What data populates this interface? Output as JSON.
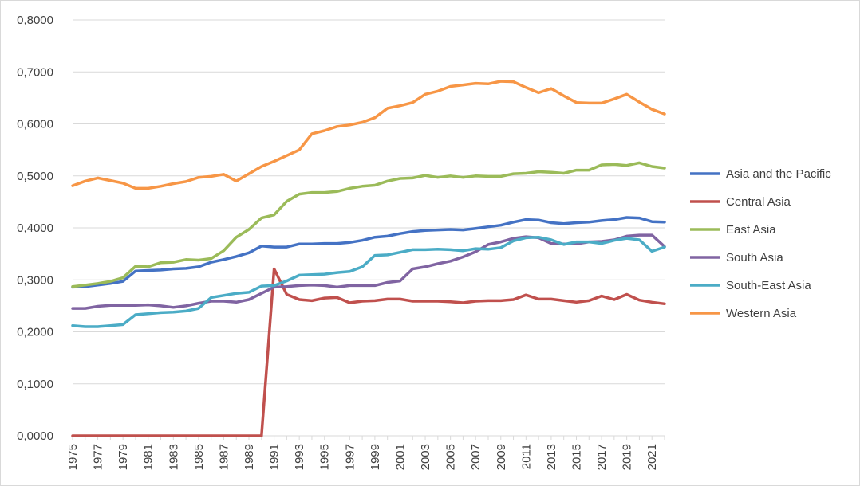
{
  "chart_data": {
    "type": "line",
    "title": "",
    "xlabel": "",
    "ylabel": "",
    "ylim": [
      0,
      0.8
    ],
    "y_ticks": [
      0,
      0.1,
      0.2,
      0.3,
      0.4,
      0.5,
      0.6,
      0.7,
      0.8
    ],
    "y_tick_labels": [
      "0,0000",
      "0,1000",
      "0,2000",
      "0,3000",
      "0,4000",
      "0,5000",
      "0,6000",
      "0,7000",
      "0,8000"
    ],
    "x": [
      1975,
      1976,
      1977,
      1978,
      1979,
      1980,
      1981,
      1982,
      1983,
      1984,
      1985,
      1986,
      1987,
      1988,
      1989,
      1990,
      1991,
      1992,
      1993,
      1994,
      1995,
      1996,
      1997,
      1998,
      1999,
      2000,
      2001,
      2002,
      2003,
      2004,
      2005,
      2006,
      2007,
      2008,
      2009,
      2010,
      2011,
      2012,
      2013,
      2014,
      2015,
      2016,
      2017,
      2018,
      2019,
      2020,
      2021,
      2022
    ],
    "x_tick_labels": [
      "1975",
      "1977",
      "1979",
      "1981",
      "1983",
      "1985",
      "1987",
      "1989",
      "1991",
      "1993",
      "1995",
      "1997",
      "1999",
      "2001",
      "2003",
      "2005",
      "2007",
      "2009",
      "2011",
      "2013",
      "2015",
      "2017",
      "2019",
      "2021"
    ],
    "grid": "horizontal",
    "legend_position": "right",
    "series": [
      {
        "name": "Asia and the Pacific",
        "color": "#4472c4",
        "values": [
          0.286,
          0.287,
          0.29,
          0.293,
          0.297,
          0.317,
          0.318,
          0.319,
          0.321,
          0.322,
          0.325,
          0.334,
          0.339,
          0.345,
          0.352,
          0.365,
          0.363,
          0.363,
          0.369,
          0.369,
          0.37,
          0.37,
          0.372,
          0.376,
          0.382,
          0.384,
          0.389,
          0.393,
          0.395,
          0.396,
          0.397,
          0.396,
          0.399,
          0.402,
          0.405,
          0.411,
          0.416,
          0.415,
          0.41,
          0.408,
          0.41,
          0.411,
          0.414,
          0.416,
          0.42,
          0.419,
          0.412,
          0.411
        ]
      },
      {
        "name": "Central Asia",
        "color": "#c0504d",
        "values": [
          0,
          0,
          0,
          0,
          0,
          0,
          0,
          0,
          0,
          0,
          0,
          0,
          0,
          0,
          0,
          0,
          0.321,
          0.272,
          0.262,
          0.26,
          0.265,
          0.266,
          0.256,
          0.259,
          0.26,
          0.263,
          0.263,
          0.259,
          0.259,
          0.259,
          0.258,
          0.256,
          0.259,
          0.26,
          0.26,
          0.262,
          0.271,
          0.263,
          0.263,
          0.26,
          0.257,
          0.26,
          0.269,
          0.262,
          0.272,
          0.261,
          0.257,
          0.254
        ]
      },
      {
        "name": "East Asia",
        "color": "#9bbb59",
        "values": [
          0.287,
          0.29,
          0.293,
          0.297,
          0.304,
          0.326,
          0.325,
          0.333,
          0.334,
          0.339,
          0.338,
          0.341,
          0.356,
          0.382,
          0.397,
          0.419,
          0.425,
          0.451,
          0.465,
          0.468,
          0.468,
          0.47,
          0.476,
          0.48,
          0.482,
          0.49,
          0.495,
          0.496,
          0.501,
          0.497,
          0.5,
          0.497,
          0.5,
          0.499,
          0.499,
          0.504,
          0.505,
          0.508,
          0.507,
          0.505,
          0.511,
          0.511,
          0.521,
          0.522,
          0.52,
          0.525,
          0.518,
          0.515
        ]
      },
      {
        "name": "South Asia",
        "color": "#8064a2",
        "values": [
          0.245,
          0.245,
          0.249,
          0.251,
          0.251,
          0.251,
          0.252,
          0.25,
          0.247,
          0.25,
          0.255,
          0.259,
          0.259,
          0.257,
          0.262,
          0.274,
          0.286,
          0.287,
          0.289,
          0.29,
          0.289,
          0.286,
          0.289,
          0.289,
          0.289,
          0.295,
          0.298,
          0.321,
          0.325,
          0.331,
          0.336,
          0.344,
          0.354,
          0.368,
          0.373,
          0.38,
          0.383,
          0.381,
          0.37,
          0.369,
          0.369,
          0.373,
          0.374,
          0.377,
          0.384,
          0.386,
          0.386,
          0.364
        ]
      },
      {
        "name": "South-East Asia",
        "color": "#4bacc6",
        "values": [
          0.212,
          0.21,
          0.21,
          0.212,
          0.214,
          0.233,
          0.235,
          0.237,
          0.238,
          0.24,
          0.245,
          0.266,
          0.27,
          0.274,
          0.276,
          0.288,
          0.289,
          0.298,
          0.309,
          0.31,
          0.311,
          0.314,
          0.316,
          0.325,
          0.347,
          0.348,
          0.353,
          0.358,
          0.358,
          0.359,
          0.358,
          0.356,
          0.36,
          0.359,
          0.362,
          0.375,
          0.381,
          0.382,
          0.377,
          0.368,
          0.373,
          0.373,
          0.37,
          0.376,
          0.38,
          0.377,
          0.355,
          0.363
        ]
      },
      {
        "name": "Western Asia",
        "color": "#f79646",
        "values": [
          0.481,
          0.49,
          0.496,
          0.491,
          0.486,
          0.476,
          0.476,
          0.48,
          0.485,
          0.489,
          0.497,
          0.499,
          0.503,
          0.49,
          0.504,
          0.518,
          0.528,
          0.539,
          0.55,
          0.581,
          0.587,
          0.595,
          0.598,
          0.603,
          0.612,
          0.63,
          0.635,
          0.641,
          0.657,
          0.663,
          0.672,
          0.675,
          0.678,
          0.677,
          0.682,
          0.681,
          0.67,
          0.66,
          0.668,
          0.654,
          0.641,
          0.64,
          0.64,
          0.648,
          0.657,
          0.642,
          0.628,
          0.619
        ]
      }
    ]
  }
}
